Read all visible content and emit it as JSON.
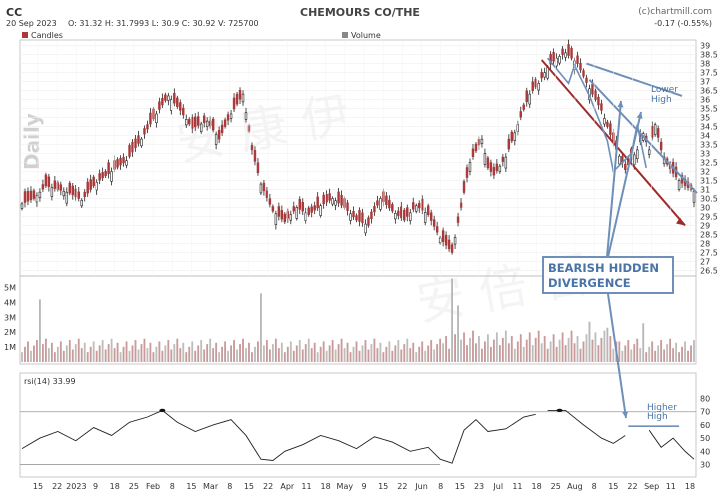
{
  "header": {
    "symbol": "CC",
    "title": "CHEMOURS CO/THE",
    "copyright": "(c)chartmill.com",
    "date": "20 Sep 2023",
    "ohlcv": "O: 31.32  H: 31.7993  L: 30.9  C: 30.92  V: 725700",
    "change": "-0.17 (-0.55%)",
    "period_label": "Daily",
    "candles_legend": "Candles",
    "volume_legend": "Volume",
    "rsi_legend": "rsi(14) 33.99"
  },
  "annotations": {
    "divergence_line1": "BEARISH HIDDEN",
    "divergence_line2": "DIVERGENCE",
    "lower_high_1": "Lower",
    "lower_high_2": "High",
    "higher_high_1": "Higher",
    "higher_high_2": "High"
  },
  "chart_data": [
    {
      "type": "candlestick",
      "title": "CHEMOURS CO/THE",
      "y_ticks": [
        26.5,
        27,
        27.5,
        28,
        28.5,
        29,
        29.5,
        30,
        30.5,
        31,
        31.5,
        32,
        32.5,
        33,
        33.5,
        34,
        34.5,
        35,
        35.5,
        36,
        36.5,
        37,
        37.5,
        38,
        38.5,
        39
      ],
      "ylim": [
        26.3,
        39.2
      ],
      "x_tick_labels": [
        "15",
        "22",
        "2023",
        "9",
        "18",
        "25",
        "Feb",
        "8",
        "15",
        "Mar",
        "8",
        "15",
        "22",
        "Apr",
        "11",
        "18",
        "May",
        "9",
        "15",
        "22",
        "Jun",
        "8",
        "15",
        "23",
        "Jul",
        "11",
        "18",
        "25",
        "Aug",
        "8",
        "15",
        "22",
        "Sep",
        "11",
        "18"
      ],
      "close_path": [
        [
          0,
          30.2
        ],
        [
          4,
          30.5
        ],
        [
          8,
          31.2
        ],
        [
          12,
          31.0
        ],
        [
          16,
          30.8
        ],
        [
          20,
          30.4
        ],
        [
          25,
          31.4
        ],
        [
          30,
          32.0
        ],
        [
          35,
          32.6
        ],
        [
          40,
          33.8
        ],
        [
          45,
          35.2
        ],
        [
          49,
          36.2
        ],
        [
          53,
          35.4
        ],
        [
          57,
          34.4
        ],
        [
          62,
          34.8
        ],
        [
          66,
          33.8
        ],
        [
          70,
          35.2
        ],
        [
          74,
          36.3
        ],
        [
          77,
          33.2
        ],
        [
          80,
          31.3
        ],
        [
          84,
          29.8
        ],
        [
          88,
          29.2
        ],
        [
          92,
          30.0
        ],
        [
          96,
          29.6
        ],
        [
          100,
          30.1
        ],
        [
          104,
          30.5
        ],
        [
          108,
          30.0
        ],
        [
          112,
          29.3
        ],
        [
          116,
          29.0
        ],
        [
          120,
          30.5
        ],
        [
          124,
          29.8
        ],
        [
          128,
          29.3
        ],
        [
          132,
          30.1
        ],
        [
          136,
          29.6
        ],
        [
          140,
          28.3
        ],
        [
          144,
          27.5
        ],
        [
          150,
          32.5
        ],
        [
          154,
          33.8
        ],
        [
          156,
          32.2
        ],
        [
          158,
          31.8
        ],
        [
          162,
          32.8
        ],
        [
          166,
          34.6
        ],
        [
          170,
          36.3
        ],
        [
          173,
          36.9
        ],
        [
          176,
          37.8
        ],
        [
          179,
          38.3
        ],
        [
          182,
          38.6
        ],
        [
          186,
          38.0
        ],
        [
          190,
          36.6
        ],
        [
          194,
          35.4
        ],
        [
          198,
          33.6
        ],
        [
          202,
          32.1
        ],
        [
          206,
          33.2
        ],
        [
          208,
          34.1
        ],
        [
          210,
          33.2
        ],
        [
          212,
          34.6
        ],
        [
          214,
          33.2
        ],
        [
          216,
          32.4
        ],
        [
          218,
          31.9
        ],
        [
          220,
          31.5
        ],
        [
          222,
          31.2
        ],
        [
          224,
          31.0
        ],
        [
          225,
          30.9
        ]
      ],
      "rising_x": [
        0,
        6,
        14,
        25,
        30,
        35,
        40,
        45,
        49,
        62,
        70,
        74,
        92,
        100,
        104,
        120,
        132,
        150,
        154,
        162,
        166,
        170,
        173,
        176,
        179,
        182,
        206,
        208,
        212
      ],
      "trendlines": [
        {
          "name": "main-downtrend",
          "color": "#9e2b2b",
          "from": [
            174,
            38.2
          ],
          "to": [
            222,
            29.0
          ]
        },
        {
          "name": "lower-high-upper",
          "color": "#6d8fb8",
          "from": [
            189,
            38.0
          ],
          "to": [
            221,
            36.2
          ]
        },
        {
          "name": "lower-high-lower",
          "color": "#6d8fb8",
          "from": [
            190,
            37.1
          ],
          "to": [
            226,
            30.8
          ]
        }
      ]
    },
    {
      "type": "bar",
      "title": "Volume",
      "y_ticks": [
        1000000,
        2000000,
        3000000,
        4000000,
        5000000
      ],
      "y_tick_labels": [
        "1M",
        "2M",
        "3M",
        "4M",
        "5M"
      ],
      "ylim": [
        0,
        5500000
      ],
      "spikes": [
        [
          6,
          4200000
        ],
        [
          80,
          4600000
        ],
        [
          144,
          5600000
        ],
        [
          146,
          3800000
        ],
        [
          190,
          2700000
        ],
        [
          196,
          2300000
        ],
        [
          208,
          2600000
        ]
      ],
      "baseline_volume": 1100000
    },
    {
      "type": "line",
      "title": "rsi(14) 33.99",
      "y_ticks": [
        30,
        40,
        50,
        60,
        70,
        80
      ],
      "ylim": [
        22,
        88
      ],
      "overbought": 70,
      "oversold": 30,
      "path": [
        [
          0,
          42
        ],
        [
          6,
          50
        ],
        [
          12,
          55
        ],
        [
          18,
          48
        ],
        [
          24,
          58
        ],
        [
          30,
          52
        ],
        [
          36,
          62
        ],
        [
          42,
          66
        ],
        [
          47,
          71
        ],
        [
          52,
          62
        ],
        [
          58,
          55
        ],
        [
          64,
          60
        ],
        [
          70,
          64
        ],
        [
          75,
          52
        ],
        [
          80,
          34
        ],
        [
          84,
          33
        ],
        [
          88,
          40
        ],
        [
          94,
          45
        ],
        [
          100,
          52
        ],
        [
          106,
          48
        ],
        [
          112,
          42
        ],
        [
          118,
          51
        ],
        [
          124,
          47
        ],
        [
          130,
          40
        ],
        [
          136,
          43
        ],
        [
          140,
          34
        ],
        [
          144,
          31
        ],
        [
          148,
          56
        ],
        [
          152,
          64
        ],
        [
          156,
          55
        ],
        [
          162,
          57
        ],
        [
          168,
          66
        ],
        [
          172,
          68
        ],
        [
          176,
          71
        ],
        [
          182,
          71
        ],
        [
          188,
          60
        ],
        [
          194,
          50
        ],
        [
          198,
          46
        ],
        [
          202,
          52
        ],
        [
          206,
          49
        ],
        [
          210,
          56
        ],
        [
          214,
          43
        ],
        [
          218,
          50
        ],
        [
          222,
          40
        ],
        [
          225,
          34
        ]
      ],
      "gap_from_index": 32,
      "trendline_color": "#6d8fb8"
    }
  ],
  "colors": {
    "rising": "#1f1f1f",
    "falling": "#a9383a",
    "wick": "#222222",
    "vol_bar": "#c89a9a",
    "vol_spike": "#b7b7b7",
    "rsi_line": "#222222",
    "annotation_blue": "#6d8fb8",
    "annotation_red": "#9e2b2b",
    "box_border": "#6d8fb8",
    "box_text": "#4a74a8",
    "change_color": "#cc3333"
  }
}
